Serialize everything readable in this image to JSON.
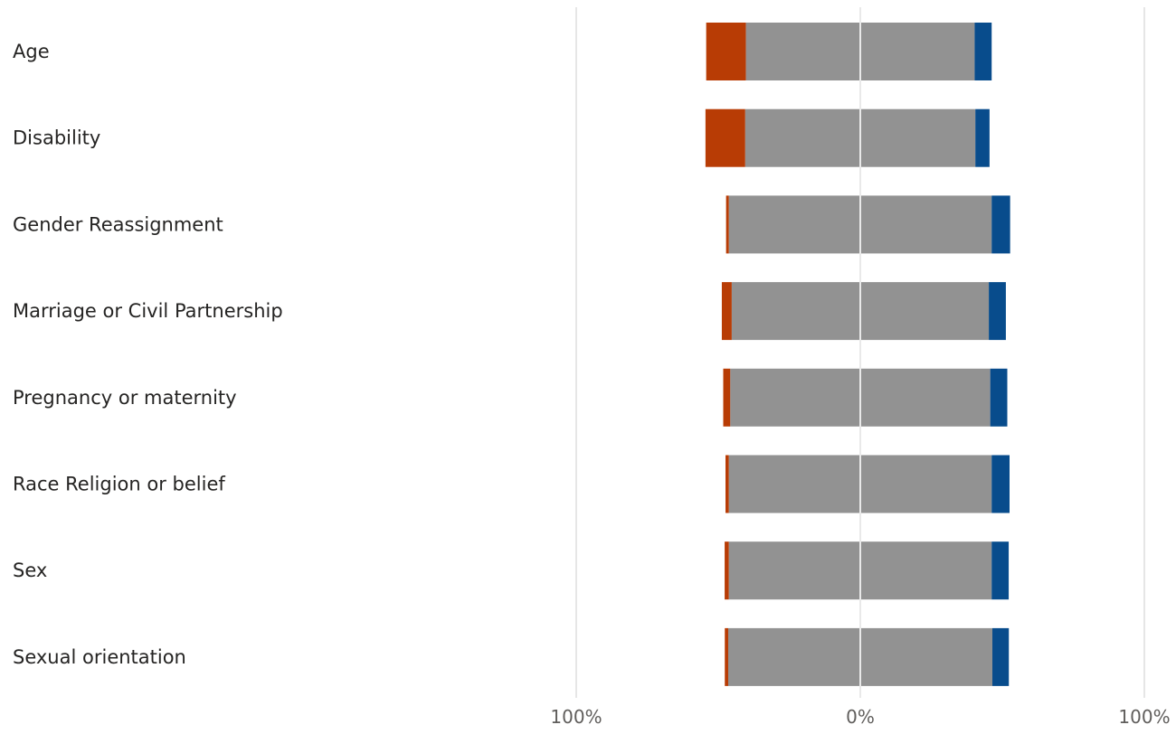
{
  "chart_data": {
    "type": "bar",
    "orientation": "horizontal",
    "stacked": "diverging",
    "categories": [
      "Age",
      "Disability",
      "Gender Reassignment",
      "Marriage or Civil Partnership",
      "Pregnancy or maternity",
      "Race Religion or belief",
      "Sex",
      "Sexual orientation"
    ],
    "series": [
      {
        "color": "#b83c05",
        "side": "negative",
        "values": [
          14,
          14,
          1,
          3.5,
          2.5,
          1.2,
          1.5,
          1.2
        ]
      },
      {
        "color": "#929292",
        "side": "split",
        "values": [
          80.5,
          81,
          92.5,
          90.5,
          91.5,
          92.5,
          92.5,
          93
        ]
      },
      {
        "color": "#084c8c",
        "side": "positive",
        "values": [
          6,
          5,
          6.5,
          6,
          6,
          6.3,
          6,
          5.8
        ]
      }
    ],
    "xlim": [
      -100,
      100
    ],
    "xticks": [
      "100%",
      "0%",
      "100%"
    ],
    "grid": true,
    "legend": "none",
    "title": "",
    "xlabel": "",
    "ylabel": ""
  }
}
